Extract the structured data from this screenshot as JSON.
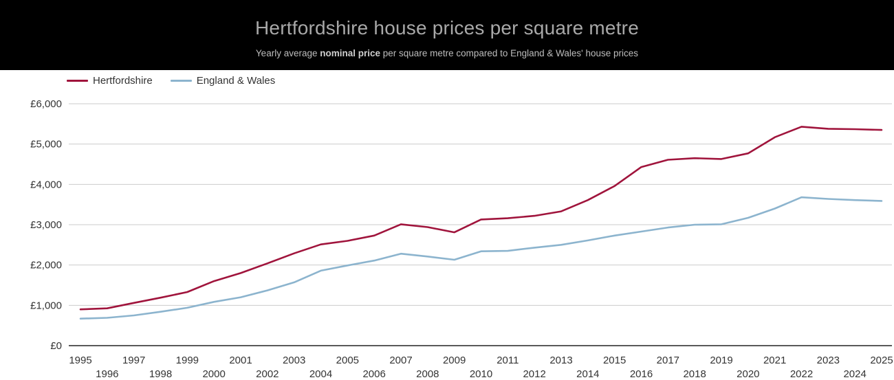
{
  "header": {
    "title": "Hertfordshire house prices per square metre",
    "subtitle_prefix": "Yearly average ",
    "subtitle_bold": "nominal price",
    "subtitle_suffix": " per square metre compared to England & Wales' house prices"
  },
  "legend": {
    "items": [
      {
        "label": "Hertfordshire"
      },
      {
        "label": "England & Wales"
      }
    ]
  },
  "chart_data": {
    "type": "line",
    "title": "Hertfordshire house prices per square metre",
    "subtitle": "Yearly average nominal price per square metre compared to England & Wales' house prices",
    "x": [
      1995,
      1996,
      1997,
      1998,
      1999,
      2000,
      2001,
      2002,
      2003,
      2004,
      2005,
      2006,
      2007,
      2008,
      2009,
      2010,
      2011,
      2012,
      2013,
      2014,
      2015,
      2016,
      2017,
      2018,
      2019,
      2020,
      2021,
      2022,
      2023,
      2024,
      2025
    ],
    "series": [
      {
        "name": "Hertfordshire",
        "color": "#a0143c",
        "values": [
          900,
          925,
          1060,
          1190,
          1330,
          1600,
          1800,
          2040,
          2290,
          2510,
          2600,
          2730,
          3010,
          2940,
          2810,
          3130,
          3160,
          3220,
          3330,
          3610,
          3960,
          4430,
          4610,
          4650,
          4630,
          4770,
          5170,
          5430,
          5380,
          5370,
          5350
        ]
      },
      {
        "name": "England & Wales",
        "color": "#8cb4ce",
        "values": [
          670,
          690,
          750,
          840,
          940,
          1085,
          1200,
          1370,
          1570,
          1860,
          1990,
          2110,
          2280,
          2210,
          2130,
          2340,
          2350,
          2430,
          2500,
          2610,
          2730,
          2830,
          2930,
          3000,
          3010,
          3170,
          3400,
          3680,
          3640,
          3610,
          3590
        ]
      }
    ],
    "xlabel": "",
    "ylabel": "",
    "yticks": [
      0,
      1000,
      2000,
      3000,
      4000,
      5000,
      6000
    ],
    "ytick_labels": [
      "£0",
      "£1,000",
      "£2,000",
      "£3,000",
      "£4,000",
      "£5,000",
      "£6,000"
    ],
    "ylim": [
      0,
      6400
    ],
    "xlim": [
      1995,
      2025
    ],
    "grid": true,
    "gridline_color": "#cbcbcb",
    "axis_line_color": "#222222",
    "tick_label_color": "#333333",
    "legend_position": "top-left",
    "x_labels_staggered": true
  }
}
